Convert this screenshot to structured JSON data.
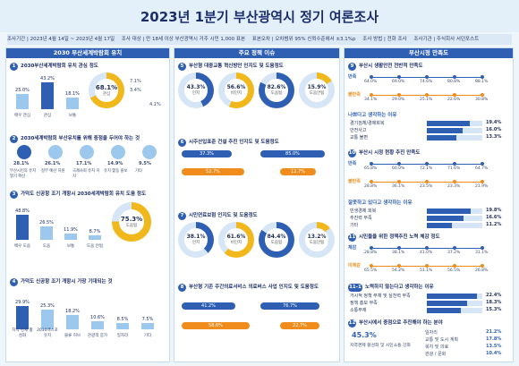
{
  "title": "2023년 1분기 부산광역시 정기 여론조사",
  "infobar": {
    "period": "조사기간 | 2023년 4월 14일 ~ 2023년 4월 17일",
    "target": "조사 대상 | 만 18세 이상 부산광역시 거주 시민 1,000 표본",
    "error": "표본오차 | 오차범위 95% 신뢰수준에서 ±3.1%p",
    "method": "조사 방법 | 전화 조사",
    "agency": "조사기관 | 주식회사 서던포스트"
  },
  "sections": {
    "col1": "2030 부산세계박람회 유치",
    "col2": "주요 정책 이슈",
    "col3": "부산시정 만족도"
  },
  "q1": {
    "num": "1",
    "text": "2030부산세계박람회 유치 관심 정도",
    "bars": [
      {
        "label": "매우 관심",
        "value": "25.0%",
        "v": 25.0
      },
      {
        "label": "관심",
        "value": "43.2%",
        "v": 43.2
      },
      {
        "label": "보통",
        "value": "18.1%",
        "v": 18.1
      }
    ],
    "donut_value": "68.1%",
    "donut_label": "관심",
    "neg1": "7.1%",
    "neg2": "3.4%",
    "low": "4.1%"
  },
  "q2": {
    "num": "2",
    "text": "2030세계박람회 부산유치를 위해 중점을 두어야 하는 것",
    "items": [
      {
        "label": "부산시민의 유치 열기 확산",
        "value": "28.1%"
      },
      {
        "label": "정부 예산 지원",
        "value": "26.1%"
      },
      {
        "label": "국제사회 유치 지지",
        "value": "17.1%"
      },
      {
        "label": "유치 활동 홍보",
        "value": "14.9%"
      },
      {
        "label": "기타",
        "value": "9.5%"
      }
    ]
  },
  "q3": {
    "num": "3",
    "text": "가덕도 신공항 조기 개항시 2030세계박람회 유치 도움 정도",
    "bars": [
      {
        "label": "매우 도움",
        "value": "48.8%",
        "v": 48.8
      },
      {
        "label": "도움",
        "value": "26.5%",
        "v": 26.5
      },
      {
        "label": "보통",
        "value": "11.9%",
        "v": 11.9
      },
      {
        "label": "도움 안됨",
        "value": "8.7%",
        "v": 8.7
      }
    ],
    "donut_value": "75.3%",
    "donut_label": "도움됨"
  },
  "q4": {
    "num": "4",
    "text": "가덕도 신공항 조기 개항시 가장 기대되는 것",
    "bars": [
      {
        "label": "지역 경제 활성화",
        "value": "29.9%",
        "v": 29.9
      },
      {
        "label": "2030엑스포 유치",
        "value": "25.3%",
        "v": 25.3
      },
      {
        "label": "물류 허브",
        "value": "18.2%",
        "v": 18.2
      },
      {
        "label": "관광객 증가",
        "value": "10.6%",
        "v": 10.6
      },
      {
        "label": "일자리",
        "value": "8.5%",
        "v": 8.5
      },
      {
        "label": "기타",
        "value": "7.5%",
        "v": 7.5
      }
    ]
  },
  "q5": {
    "num": "5",
    "text": "부산형 대중교통 혁신방안 인지도 및 도움정도",
    "donuts": [
      {
        "value": "43.3%",
        "label": "인지",
        "pct": 43.3,
        "color": "#2f5fb3"
      },
      {
        "value": "56.6%",
        "label": "비인지",
        "pct": 56.6,
        "color": "#f0b81c"
      },
      {
        "value": "82.6%",
        "label": "도움됨",
        "pct": 82.6,
        "color": "#2f5fb3"
      },
      {
        "value": "15.9%",
        "label": "도움안됨",
        "pct": 15.9,
        "color": "#f0b81c"
      }
    ]
  },
  "q6": {
    "num": "6",
    "text": "시주산입표준 건설 추진 인지도 및 도움정도",
    "known": "37.3%",
    "unknown": "52.7%",
    "help": "85.0%",
    "nohelp": "12.7%"
  },
  "q7": {
    "num": "7",
    "text": "시민연료보험 인지도 및 도움정도",
    "donuts": [
      {
        "value": "38.1%",
        "label": "인지",
        "pct": 38.1,
        "color": "#2f5fb3"
      },
      {
        "value": "61.6%",
        "label": "비인지",
        "pct": 61.6,
        "color": "#f0b81c"
      },
      {
        "value": "84.4%",
        "label": "도움됨",
        "pct": 84.4,
        "color": "#2f5fb3"
      },
      {
        "value": "13.2%",
        "label": "도움안됨",
        "pct": 13.2,
        "color": "#f0b81c"
      }
    ]
  },
  "q8": {
    "num": "8",
    "text": "부산형 기존 주간의료서비스 의료버스 사업 인지도 및 도움정도",
    "known": "41.2%",
    "unknown": "58.6%",
    "help": "76.7%",
    "nohelp": "22.7%"
  },
  "q9": {
    "num": "9",
    "text": "부산시 생활안전 전반적 만족도",
    "rows": [
      {
        "label": "만족",
        "values": [
          "64.0%",
          "69.0%",
          "74.6%",
          "80.8%",
          "88.1%"
        ]
      },
      {
        "label": "불만족",
        "values": [
          "34.1%",
          "29.0%",
          "25.1%",
          "22.6%",
          "30.8%"
        ]
      }
    ],
    "periods": [
      "21-2Q",
      "21-3Q",
      "22-1Q",
      "22-4Q",
      "23-1Q"
    ]
  },
  "q9a": {
    "text": "나쁘다고 생각하는 이유",
    "items": [
      {
        "label": "경기침체/경제회복",
        "value": "19.4%"
      },
      {
        "label": "안전사고",
        "value": "16.0%"
      },
      {
        "label": "교통 불편",
        "value": "13.3%"
      }
    ]
  },
  "q10": {
    "num": "10",
    "text": "부산시 시정 현황 추진 만족도",
    "rows": [
      {
        "label": "만족",
        "values": [
          "65.8%",
          "60.0%",
          "72.1%",
          "71.6%",
          "64.7%"
        ]
      },
      {
        "label": "불만족",
        "values": [
          "28.8%",
          "36.1%",
          "23.5%",
          "23.3%",
          "21.9%"
        ]
      }
    ]
  },
  "q10a": {
    "text": "잘못하고 있다고 생각하는 이유",
    "items": [
      {
        "label": "민생경제 회복",
        "value": "19.8%"
      },
      {
        "label": "추진력 부족",
        "value": "16.6%"
      },
      {
        "label": "기타",
        "value": "11.2%"
      }
    ]
  },
  "q11": {
    "num": "11",
    "text": "시민들을 위한 정책추진 노력 체감 정도",
    "rows": [
      {
        "label": "체감",
        "values": [
          "28.8%",
          "38.1%",
          "41.0%",
          "37.2%",
          "31.1%"
        ]
      },
      {
        "label": "미체감",
        "values": [
          "65.5%",
          "54.2%",
          "51.1%",
          "56.5%",
          "26.8%"
        ]
      }
    ]
  },
  "q11a": {
    "num": "11-1",
    "text": "노력하지 않는다고 생각하는 이유",
    "items": [
      {
        "label": "거시적 정책 부재 및 실천력 부족",
        "value": "22.4%"
      },
      {
        "label": "정책 홍보 부족",
        "value": "18.3%"
      },
      {
        "label": "소통부재",
        "value": "15.3%"
      }
    ]
  },
  "q12": {
    "num": "12",
    "text": "부산시에서 중점으로 추진해야 하는 분야",
    "lead_value": "45.3%",
    "lead_label": "지역경제 활성화 및 시민소통 강화",
    "items": [
      {
        "label": "일자리",
        "value": "21.2%"
      },
      {
        "label": "교통 및 도시 계획",
        "value": "17.8%"
      },
      {
        "label": "복지 및 의료",
        "value": "13.5%"
      },
      {
        "label": "관광 / 문화",
        "value": "10.4%"
      }
    ]
  },
  "colors": {
    "primary": "#2f5fb3",
    "accent": "#f0b81c",
    "orange": "#f08c1c",
    "light": "#9cc8ee"
  }
}
